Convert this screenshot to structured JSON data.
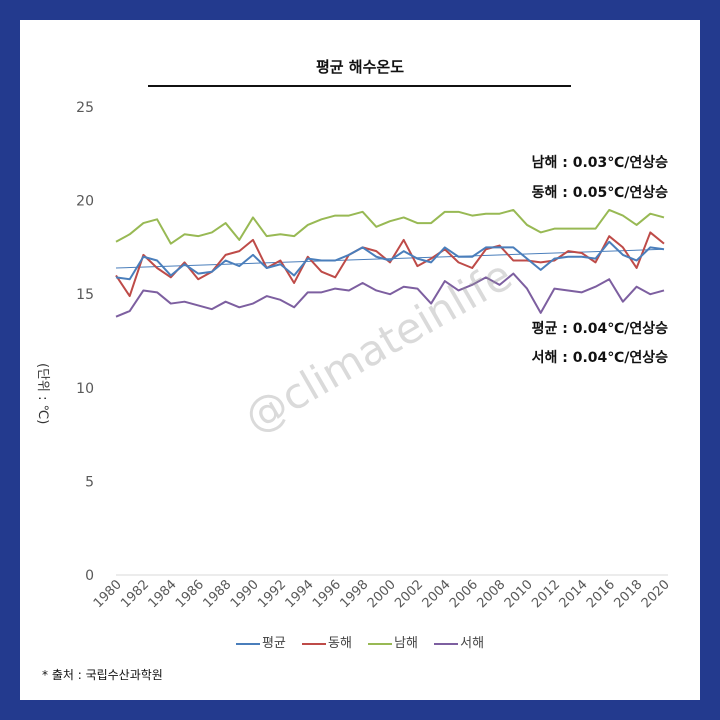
{
  "chart_data": {
    "type": "line",
    "title": "평균 해수온도",
    "ylabel": "(단위 : ℃)",
    "ylim": [
      0,
      25
    ],
    "yticks": [
      0,
      5,
      10,
      15,
      20,
      25
    ],
    "x": [
      1980,
      1981,
      1982,
      1983,
      1984,
      1985,
      1986,
      1987,
      1988,
      1989,
      1990,
      1991,
      1992,
      1993,
      1994,
      1995,
      1996,
      1997,
      1998,
      1999,
      2000,
      2001,
      2002,
      2003,
      2004,
      2005,
      2006,
      2007,
      2008,
      2009,
      2010,
      2011,
      2012,
      2013,
      2014,
      2015,
      2016,
      2017,
      2018,
      2019,
      2020
    ],
    "xtick_labels": [
      "1980",
      "1982",
      "1984",
      "1986",
      "1988",
      "1990",
      "1992",
      "1994",
      "1996",
      "1998",
      "2000",
      "2002",
      "2004",
      "2006",
      "2008",
      "2010",
      "2012",
      "2014",
      "2016",
      "2018",
      "2020"
    ],
    "series": [
      {
        "name": "평균",
        "color": "#4a7ebb",
        "values": [
          15.9,
          15.8,
          17.0,
          16.8,
          16.0,
          16.6,
          16.1,
          16.2,
          16.8,
          16.5,
          17.1,
          16.4,
          16.6,
          16.0,
          16.9,
          16.8,
          16.8,
          17.1,
          17.5,
          17.0,
          16.8,
          17.3,
          16.9,
          16.7,
          17.5,
          17.0,
          17.0,
          17.5,
          17.5,
          17.5,
          16.9,
          16.3,
          16.9,
          17.0,
          17.0,
          16.9,
          17.8,
          17.1,
          16.8,
          17.5,
          17.4
        ]
      },
      {
        "name": "동해",
        "color": "#be4b48",
        "values": [
          16.0,
          14.9,
          17.1,
          16.4,
          15.9,
          16.7,
          15.8,
          16.2,
          17.1,
          17.3,
          17.9,
          16.4,
          16.8,
          15.6,
          17.0,
          16.2,
          15.9,
          17.1,
          17.5,
          17.3,
          16.7,
          17.9,
          16.5,
          16.9,
          17.4,
          16.7,
          16.4,
          17.4,
          17.6,
          16.8,
          16.8,
          16.7,
          16.8,
          17.3,
          17.2,
          16.7,
          18.1,
          17.5,
          16.4,
          18.3,
          17.7
        ]
      },
      {
        "name": "남해",
        "color": "#98b954",
        "values": [
          17.8,
          18.2,
          18.8,
          19.0,
          17.7,
          18.2,
          18.1,
          18.3,
          18.8,
          17.9,
          19.1,
          18.1,
          18.2,
          18.1,
          18.7,
          19.0,
          19.2,
          19.2,
          19.4,
          18.6,
          18.9,
          19.1,
          18.8,
          18.8,
          19.4,
          19.4,
          19.2,
          19.3,
          19.3,
          19.5,
          18.7,
          18.3,
          18.5,
          18.5,
          18.5,
          18.5,
          19.5,
          19.2,
          18.7,
          19.3,
          19.1
        ]
      },
      {
        "name": "서해",
        "color": "#7d5fa0",
        "values": [
          13.8,
          14.1,
          15.2,
          15.1,
          14.5,
          14.6,
          14.4,
          14.2,
          14.6,
          14.3,
          14.5,
          14.9,
          14.7,
          14.3,
          15.1,
          15.1,
          15.3,
          15.2,
          15.6,
          15.2,
          15.0,
          15.4,
          15.3,
          14.5,
          15.7,
          15.2,
          15.5,
          15.9,
          15.5,
          16.1,
          15.3,
          14.0,
          15.3,
          15.2,
          15.1,
          15.4,
          15.8,
          14.6,
          15.4,
          15.0,
          15.2
        ]
      }
    ],
    "trendline": {
      "series": "평균",
      "color": "#4a7ebb",
      "start": [
        1980,
        16.4
      ],
      "end": [
        2020,
        17.4
      ]
    },
    "grid": false,
    "legend": "bottom"
  },
  "annotations": {
    "south": "남해 : 0.03℃/연상승",
    "east": "동해 : 0.05℃/연상승",
    "average": "평균 : 0.04℃/연상승",
    "west": "서해 : 0.04℃/연상승"
  },
  "watermark": "@climateinlife",
  "source": "* 출처 : 국립수산과학원"
}
